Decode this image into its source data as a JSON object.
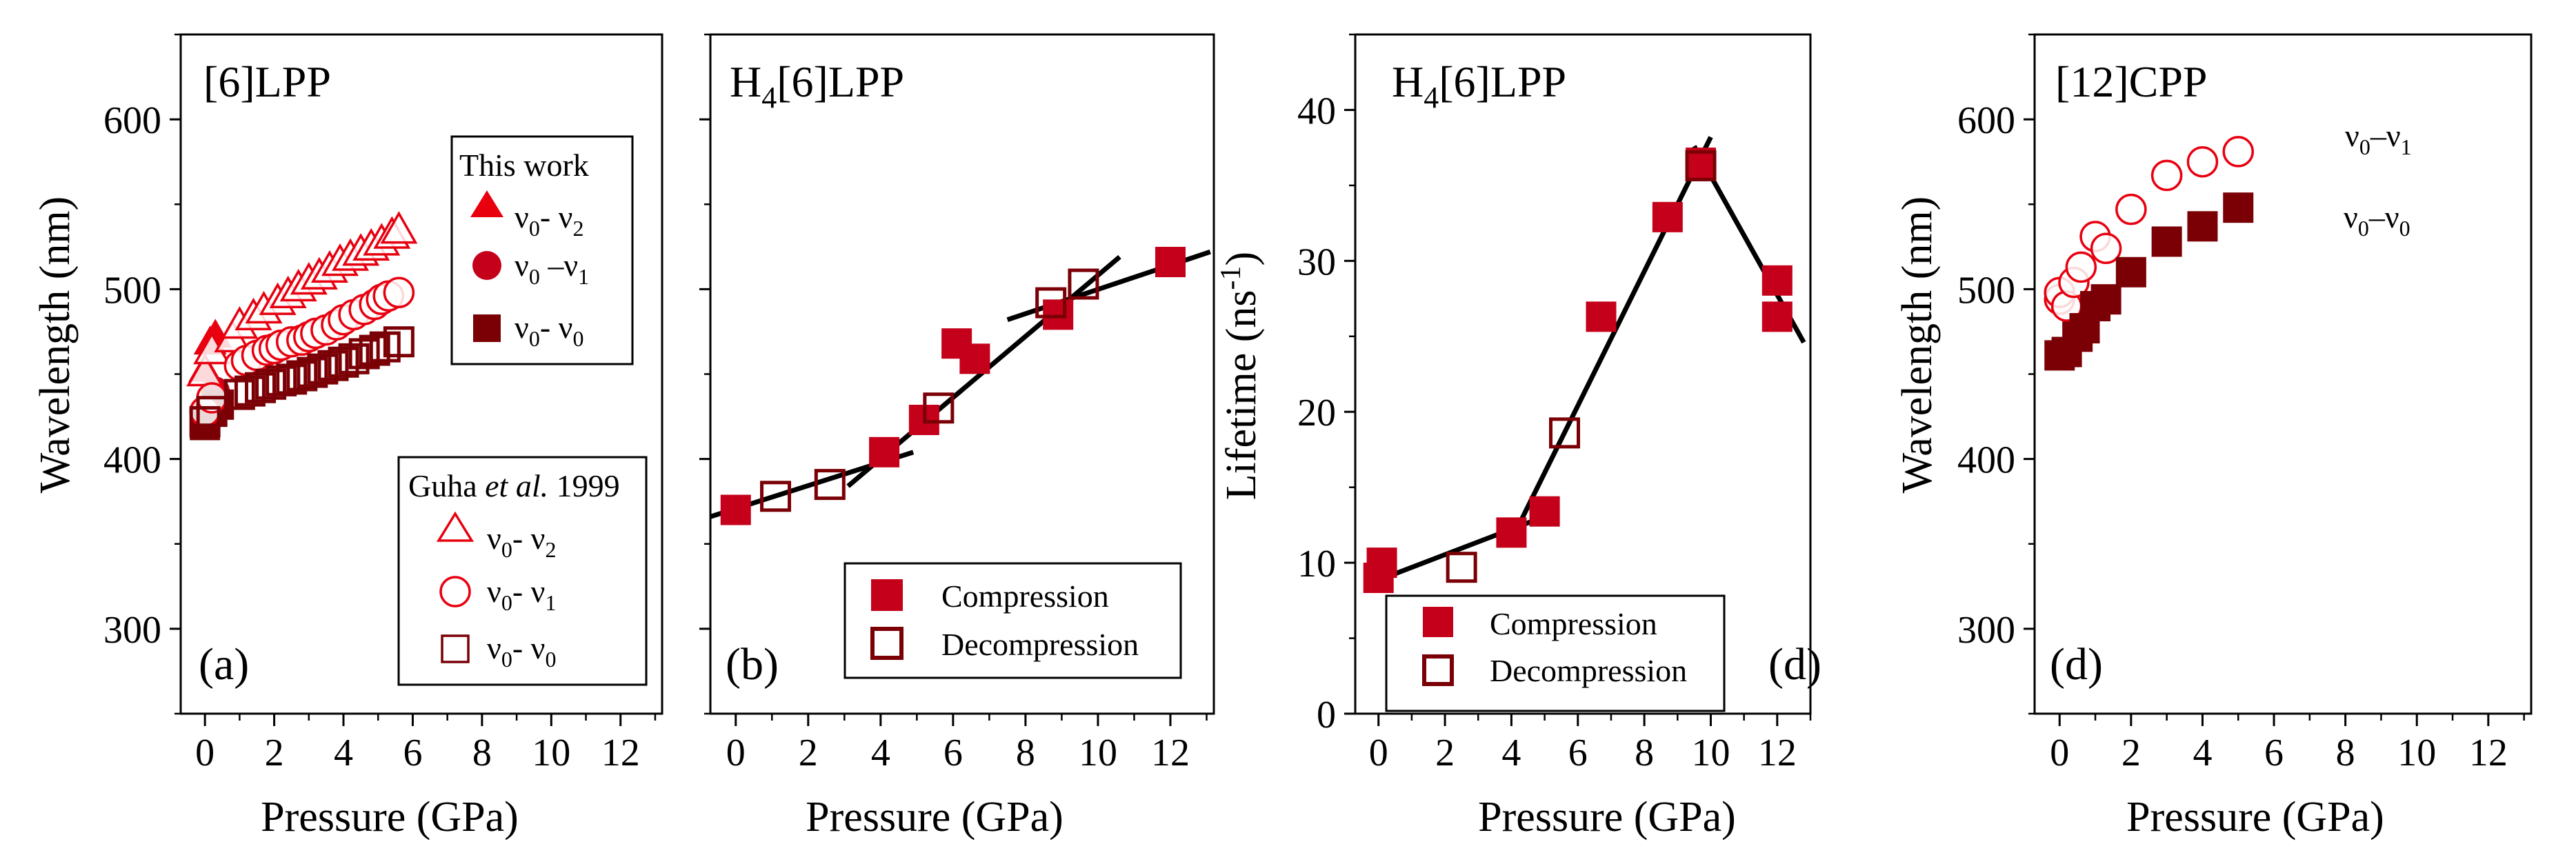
{
  "colors": {
    "red": "#e8000f",
    "crimson": "#c4001a",
    "dark": "#7a0006",
    "line": "#000000",
    "axis": "#000000"
  },
  "chart_data": [
    {
      "id": "a",
      "type": "scatter",
      "title": "[6]LPP",
      "letter": "(a)",
      "xlabel": "Pressure (GPa)",
      "ylabel": "Wavelength (nm)",
      "xlim": [
        -0.7,
        13.2
      ],
      "ylim": [
        250,
        650
      ],
      "xticks": [
        0,
        2,
        4,
        6,
        8,
        10,
        12
      ],
      "yticks": [
        300,
        400,
        500,
        600
      ],
      "legend": {
        "this_work": "This work",
        "this_work_items": [
          "ν0- ν2",
          "ν0 –ν1",
          "ν0- ν0"
        ],
        "guha_prefix": "Guha ",
        "guha_italic": "et al.",
        "guha_suffix": " 1999",
        "guha_items": [
          "ν0- ν2",
          "ν0- ν1",
          "ν0- ν0"
        ]
      },
      "series": [
        {
          "name": "This work ν0-ν2",
          "marker": "triangle-filled",
          "color": "red",
          "x": [
            0.0,
            0.15,
            0.3
          ],
          "y": [
            452,
            468,
            472
          ]
        },
        {
          "name": "This work ν0-ν1",
          "marker": "circle-filled",
          "color": "crimson",
          "x": [
            0.0,
            0.3
          ],
          "y": [
            428,
            440
          ]
        },
        {
          "name": "This work ν0-ν0",
          "marker": "square-filled",
          "color": "dark",
          "x": [
            0.0,
            0.2,
            0.4
          ],
          "y": [
            420,
            428,
            432
          ]
        },
        {
          "name": "Guha 1999 ν0-ν2",
          "marker": "triangle-open",
          "color": "red",
          "x": [
            0.0,
            0.2,
            0.8,
            1.0,
            1.4,
            1.7,
            2.1,
            2.4,
            2.7,
            3.0,
            3.3,
            3.6,
            3.9,
            4.2,
            4.5,
            4.8,
            5.1,
            5.4,
            5.6
          ],
          "y": [
            450,
            463,
            470,
            478,
            483,
            487,
            492,
            496,
            500,
            504,
            507,
            511,
            515,
            518,
            521,
            524,
            527,
            531,
            534
          ]
        },
        {
          "name": "Guha 1999 ν0-ν1",
          "marker": "circle-open",
          "color": "red",
          "x": [
            0.0,
            0.2,
            1.0,
            1.2,
            1.5,
            1.8,
            2.0,
            2.2,
            2.5,
            2.8,
            3.0,
            3.2,
            3.5,
            3.8,
            4.0,
            4.3,
            4.6,
            4.9,
            5.1,
            5.3,
            5.6
          ],
          "y": [
            428,
            436,
            455,
            458,
            461,
            464,
            465,
            467,
            469,
            470,
            472,
            474,
            476,
            479,
            482,
            485,
            488,
            491,
            494,
            496,
            498
          ]
        },
        {
          "name": "Guha 1999 ν0-ν0",
          "marker": "square-open",
          "color": "dark",
          "x": [
            0.0,
            0.2,
            1.0,
            1.3,
            1.6,
            1.9,
            2.2,
            2.5,
            2.8,
            3.1,
            3.4,
            3.7,
            4.0,
            4.3,
            4.6,
            4.9,
            5.2,
            5.6
          ],
          "y": [
            422,
            428,
            438,
            440,
            442,
            444,
            446,
            447,
            449,
            451,
            453,
            455,
            457,
            459,
            462,
            464,
            466,
            469
          ]
        }
      ]
    },
    {
      "id": "b",
      "type": "scatter",
      "title_prefix": "H",
      "title_sub": "4",
      "title_suffix": "[6]LPP",
      "letter": "(b)",
      "xlabel": "Pressure (GPa)",
      "xlim": [
        -0.7,
        13.2
      ],
      "ylim": [
        250,
        650
      ],
      "xticks": [
        0,
        2,
        4,
        6,
        8,
        10,
        12
      ],
      "legend_items": [
        "Compression",
        "Decompression"
      ],
      "series": [
        {
          "name": "Compression",
          "marker": "square-filled",
          "color": "crimson",
          "x": [
            0.0,
            4.1,
            5.2,
            6.1,
            6.6,
            8.9,
            12.0
          ],
          "y": [
            370,
            404,
            423,
            468,
            459,
            485,
            516
          ]
        },
        {
          "name": "Decompression",
          "marker": "square-open",
          "color": "dark",
          "x": [
            1.1,
            2.6,
            5.6,
            8.7,
            9.6
          ],
          "y": [
            378,
            385,
            430,
            492,
            503
          ]
        }
      ],
      "fit_lines": [
        {
          "x": [
            -0.7,
            4.9
          ],
          "y": [
            366,
            404
          ]
        },
        {
          "x": [
            3.1,
            10.6
          ],
          "y": [
            384,
            519
          ]
        },
        {
          "x": [
            7.5,
            13.1
          ],
          "y": [
            482,
            522
          ]
        }
      ]
    },
    {
      "id": "c",
      "type": "scatter",
      "title_prefix": "H",
      "title_sub": "4",
      "title_suffix": "[6]LPP",
      "letter": "(d)",
      "xlabel": "Pressure (GPa)",
      "ylabel_prefix": "Lifetime (ns",
      "ylabel_sup": "-1",
      "ylabel_suffix": ")",
      "xlim": [
        -0.7,
        13.0
      ],
      "ylim": [
        0,
        45
      ],
      "xticks": [
        0,
        2,
        4,
        6,
        8,
        10,
        12
      ],
      "yticks": [
        0,
        10,
        20,
        30,
        40
      ],
      "legend_items": [
        "Compression",
        "Decompression"
      ],
      "series": [
        {
          "name": "Compression",
          "marker": "square-filled",
          "color": "crimson",
          "x": [
            0.0,
            0.1,
            4.0,
            5.0,
            6.7,
            8.7,
            9.7,
            12.0,
            12.0
          ],
          "y": [
            9.0,
            10.0,
            12.0,
            13.4,
            26.3,
            32.9,
            36.5,
            28.7,
            26.3
          ]
        },
        {
          "name": "Decompression",
          "marker": "square-open",
          "color": "dark",
          "x": [
            2.5,
            5.6,
            9.7
          ],
          "y": [
            9.7,
            18.6,
            36.3
          ]
        }
      ],
      "fit_lines": [
        {
          "x": [
            -0.3,
            4.8
          ],
          "y": [
            8.6,
            12.9
          ]
        },
        {
          "x": [
            4.2,
            10.0
          ],
          "y": [
            12.4,
            38.2
          ]
        },
        {
          "x": [
            9.5,
            12.8
          ],
          "y": [
            37.6,
            24.6
          ]
        }
      ]
    },
    {
      "id": "d",
      "type": "scatter",
      "title": "[12]CPP",
      "letter": "(d)",
      "xlabel": "Pressure (GPa)",
      "ylabel": "Wavelength (nm)",
      "xlim": [
        -0.7,
        13.2
      ],
      "ylim": [
        250,
        650
      ],
      "xticks": [
        0,
        2,
        4,
        6,
        8,
        10,
        12
      ],
      "yticks": [
        300,
        400,
        500,
        600
      ],
      "legend_items": [
        "ν0–ν1",
        "ν0–ν0"
      ],
      "series": [
        {
          "name": "ν0–ν1",
          "marker": "circle-open",
          "color": "red",
          "x": [
            0.0,
            0.0,
            0.2,
            0.4,
            0.6,
            1.0,
            1.3,
            2.0,
            3.0,
            4.0,
            5.0
          ],
          "y": [
            494,
            498,
            490,
            504,
            513,
            531,
            524,
            547,
            567,
            575,
            581
          ]
        },
        {
          "name": "ν0–ν0",
          "marker": "square-filled",
          "color": "dark",
          "x": [
            0.0,
            0.2,
            0.5,
            0.7,
            1.0,
            1.3,
            2.0,
            3.0,
            4.0,
            5.0
          ],
          "y": [
            461,
            463,
            472,
            477,
            490,
            494,
            510,
            528,
            537,
            548
          ]
        }
      ]
    }
  ]
}
